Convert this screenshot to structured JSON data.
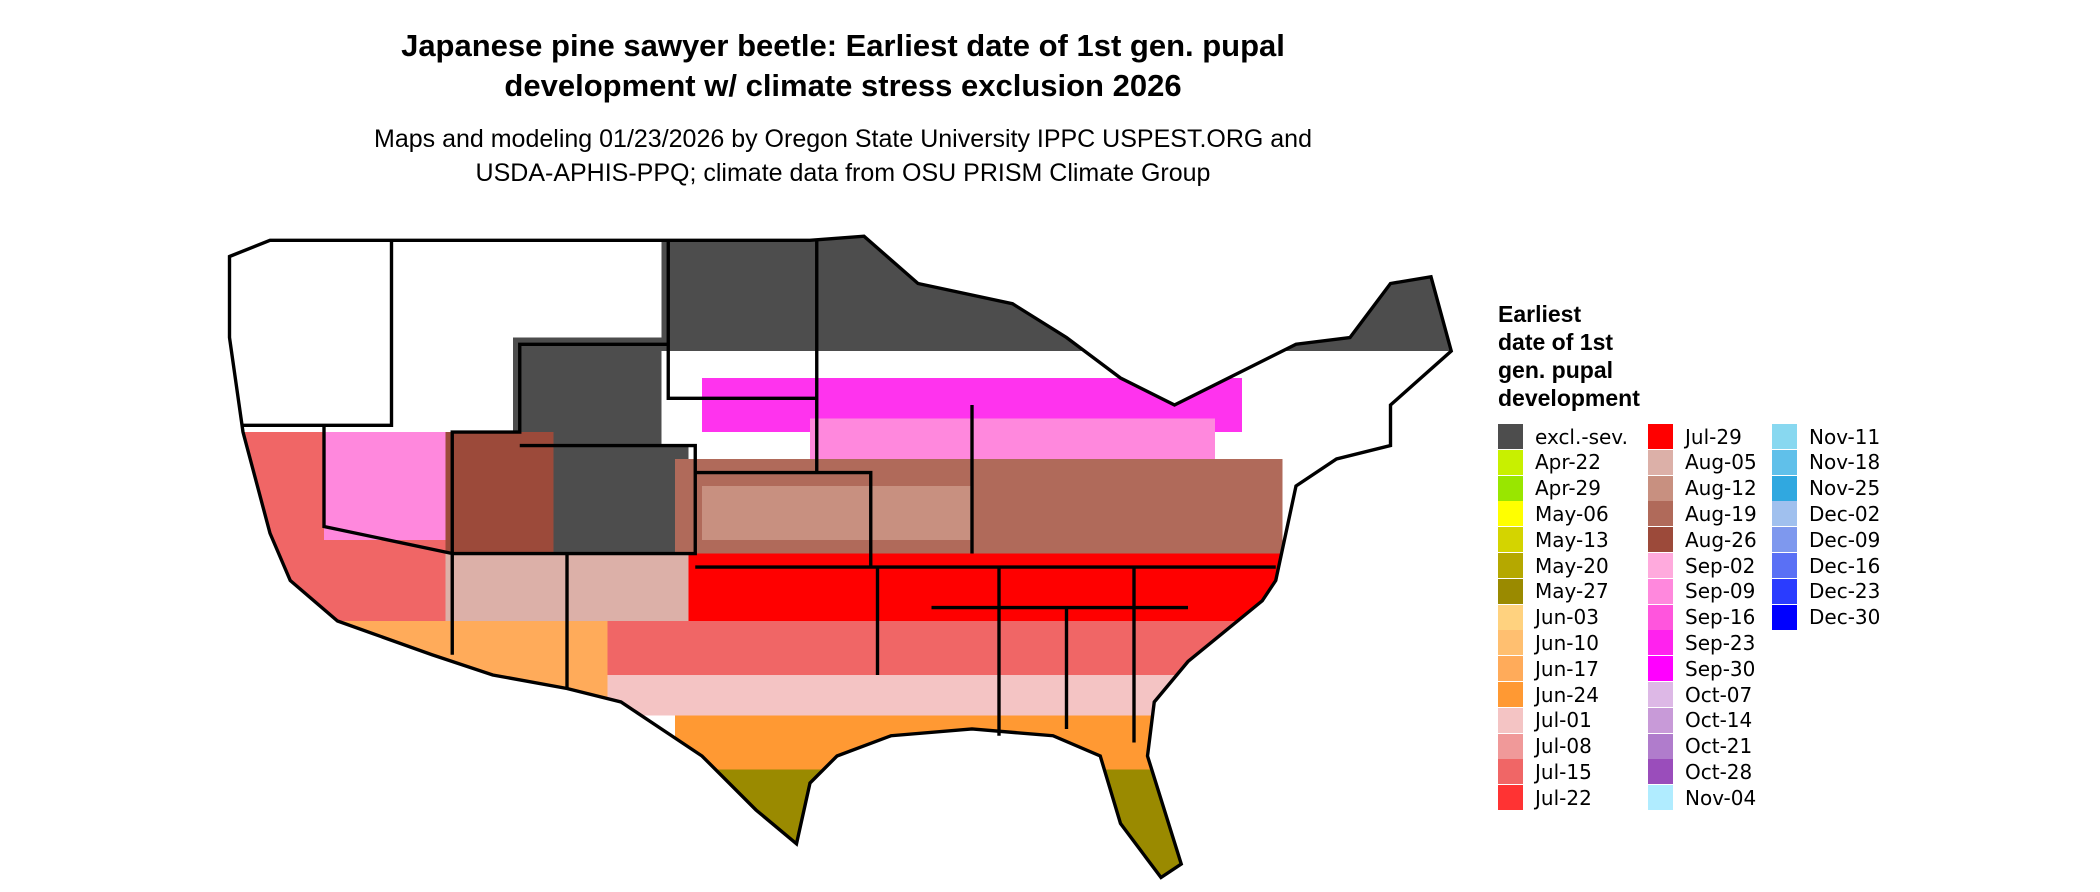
{
  "header": {
    "title": [
      "Japanese pine sawyer beetle: Earliest date of 1st gen. pupal",
      "development w/ climate stress exclusion 2026"
    ],
    "subtitle": [
      "Maps and modeling 01/23/2026 by Oregon State University IPPC USPEST.ORG and",
      "USDA-APHIS-PPQ; climate data from OSU PRISM Climate Group"
    ]
  },
  "legend": {
    "title": [
      "Earliest",
      "date of 1st",
      "gen. pupal",
      "development"
    ],
    "items": [
      {
        "label": "excl.-sev.",
        "color": "#4d4d4d"
      },
      {
        "label": "Apr-22",
        "color": "#c8f000"
      },
      {
        "label": "Apr-29",
        "color": "#99e600"
      },
      {
        "label": "May-06",
        "color": "#ffff00"
      },
      {
        "label": "May-13",
        "color": "#d4d400"
      },
      {
        "label": "May-20",
        "color": "#b5a800"
      },
      {
        "label": "May-27",
        "color": "#9a8a00"
      },
      {
        "label": "Jun-03",
        "color": "#ffd27f"
      },
      {
        "label": "Jun-10",
        "color": "#ffbf70"
      },
      {
        "label": "Jun-17",
        "color": "#ffab5a"
      },
      {
        "label": "Jun-24",
        "color": "#ff9933"
      },
      {
        "label": "Jul-01",
        "color": "#f4c4c4"
      },
      {
        "label": "Jul-08",
        "color": "#f09999"
      },
      {
        "label": "Jul-15",
        "color": "#f06666"
      },
      {
        "label": "Jul-22",
        "color": "#ff3333"
      },
      {
        "label": "Jul-29",
        "color": "#ff0000"
      },
      {
        "label": "Aug-05",
        "color": "#dcb0a8"
      },
      {
        "label": "Aug-12",
        "color": "#c89080"
      },
      {
        "label": "Aug-19",
        "color": "#b06a5a"
      },
      {
        "label": "Aug-26",
        "color": "#9c4a3a"
      },
      {
        "label": "Sep-02",
        "color": "#ffaadd"
      },
      {
        "label": "Sep-09",
        "color": "#ff88dd"
      },
      {
        "label": "Sep-16",
        "color": "#ff55dd"
      },
      {
        "label": "Sep-23",
        "color": "#ff22ee"
      },
      {
        "label": "Sep-30",
        "color": "#ff00ff"
      },
      {
        "label": "Oct-07",
        "color": "#ddb8e6"
      },
      {
        "label": "Oct-14",
        "color": "#c89ad8"
      },
      {
        "label": "Oct-21",
        "color": "#b07ccc"
      },
      {
        "label": "Oct-28",
        "color": "#9a4dbb"
      },
      {
        "label": "Nov-04",
        "color": "#b0ecff"
      },
      {
        "label": "Nov-11",
        "color": "#88d8f0"
      },
      {
        "label": "Nov-18",
        "color": "#60c0ea"
      },
      {
        "label": "Nov-25",
        "color": "#30a8e0"
      },
      {
        "label": "Dec-02",
        "color": "#a0c0ee"
      },
      {
        "label": "Dec-09",
        "color": "#7e98ee"
      },
      {
        "label": "Dec-16",
        "color": "#5a70f5"
      },
      {
        "label": "Dec-23",
        "color": "#2a3cff"
      },
      {
        "label": "Dec-30",
        "color": "#0000ff"
      }
    ]
  }
}
